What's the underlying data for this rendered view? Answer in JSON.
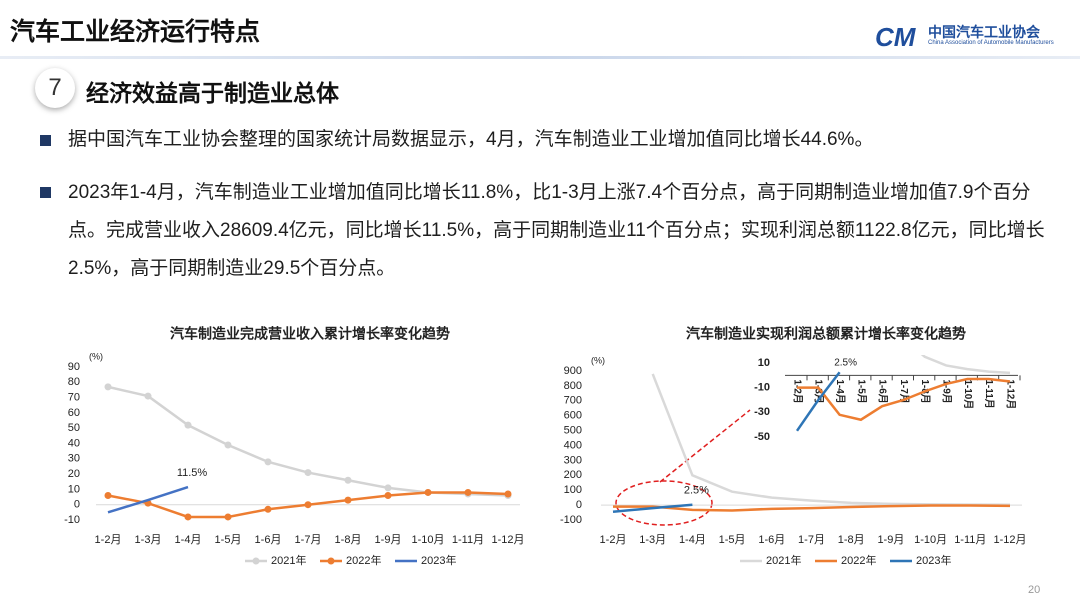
{
  "header": {
    "title": "汽车工业经济运行特点",
    "logo_cn": "中国汽车工业协会",
    "logo_en": "China Association of Automobile Manufacturers"
  },
  "section": {
    "number": "7",
    "title": "经济效益高于制造业总体"
  },
  "bullets": [
    "据中国汽车工业协会整理的国家统计局数据显示，4月，汽车制造业工业增加值同比增长44.6%。",
    "2023年1-4月，汽车制造业工业增加值同比增长11.8%，比1-3月上涨7.4个百分点，高于同期制造业增加值7.9个百分点。完成营业收入28609.4亿元，同比增长11.5%，高于同期制造业11个百分点；实现利润总额1122.8亿元，同比增长2.5%，高于同期制造业29.5个百分点。"
  ],
  "page_number": "20",
  "chart_data": [
    {
      "type": "line",
      "title": "汽车制造业完成营业收入累计增长率变化趋势",
      "y_label": "(%)",
      "annotation": "11.5%",
      "categories": [
        "1-2月",
        "1-3月",
        "1-4月",
        "1-5月",
        "1-6月",
        "1-7月",
        "1-8月",
        "1-9月",
        "1-10月",
        "1-11月",
        "1-12月"
      ],
      "ylim": [
        -10,
        90
      ],
      "yticks": [
        -10,
        0,
        10,
        20,
        30,
        40,
        50,
        60,
        70,
        80,
        90
      ],
      "series": [
        {
          "name": "2021年",
          "color": "#d3d3d3",
          "marker": true,
          "values": [
            77,
            71,
            52,
            39,
            28,
            21,
            16,
            11,
            8,
            7,
            6
          ]
        },
        {
          "name": "2022年",
          "color": "#ed7d31",
          "marker": true,
          "values": [
            6,
            1,
            -8,
            -8,
            -3,
            0,
            3,
            6,
            8,
            8,
            7
          ]
        },
        {
          "name": "2023年",
          "color": "#4472c4",
          "marker": false,
          "values": [
            -5,
            3,
            11.5,
            null,
            null,
            null,
            null,
            null,
            null,
            null,
            null
          ]
        }
      ]
    },
    {
      "type": "line",
      "title": "汽车制造业实现利润总额累计增长率变化趋势",
      "y_label": "(%)",
      "annotation": "2.5%",
      "categories": [
        "1-2月",
        "1-3月",
        "1-4月",
        "1-5月",
        "1-6月",
        "1-7月",
        "1-8月",
        "1-9月",
        "1-10月",
        "1-11月",
        "1-12月"
      ],
      "ylim": [
        -100,
        900
      ],
      "yticks": [
        -100,
        0,
        100,
        200,
        300,
        400,
        500,
        600,
        700,
        800,
        900
      ],
      "series": [
        {
          "name": "2021年",
          "color": "#d9d9d9",
          "marker": false,
          "values": [
            null,
            880,
            200,
            90,
            50,
            30,
            15,
            8,
            5,
            3,
            2
          ]
        },
        {
          "name": "2022年",
          "color": "#ed7d31",
          "marker": false,
          "values": [
            -10,
            -10,
            -32,
            -36,
            -25,
            -20,
            -13,
            -7,
            -3,
            -3,
            -5
          ]
        },
        {
          "name": "2023年",
          "color": "#2e75b6",
          "marker": false,
          "values": [
            -45,
            -20,
            2.5,
            null,
            null,
            null,
            null,
            null,
            null,
            null,
            null
          ]
        }
      ],
      "inset": {
        "ylim": [
          -50,
          10
        ],
        "yticks": [
          10,
          -10,
          -30,
          -50
        ],
        "annotation": "2.5%"
      }
    }
  ]
}
